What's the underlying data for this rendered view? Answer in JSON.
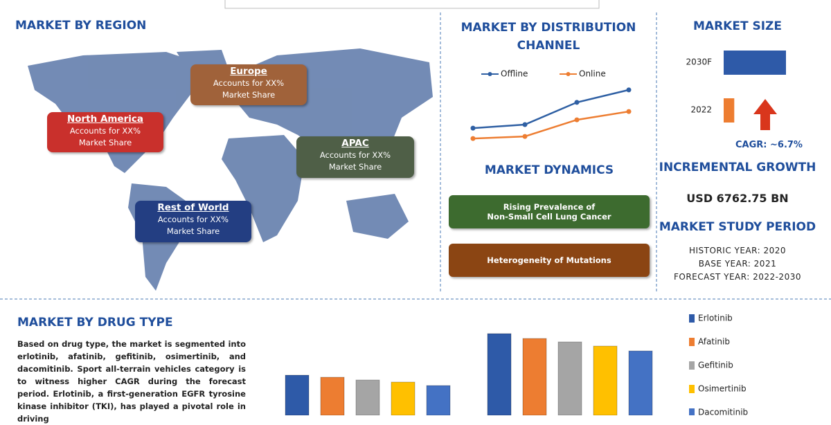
{
  "region": {
    "title": "MARKET BY REGION",
    "labels": [
      {
        "name": "North America",
        "lines": [
          "Accounts for XX%",
          "Market Share"
        ]
      },
      {
        "name": "Europe",
        "lines": [
          "Accounts for XX%",
          "Market Share"
        ]
      },
      {
        "name": "APAC",
        "lines": [
          "Accounts for XX%",
          "Market Share"
        ]
      },
      {
        "name": "Rest of World",
        "lines": [
          "Accounts for XX%",
          "Market Share"
        ]
      }
    ]
  },
  "dynamics": {
    "title": "MARKET DYNAMICS",
    "items": [
      {
        "lines": [
          "Rising Prevalence of",
          "Non-Small Cell Lung Cancer"
        ]
      },
      {
        "lines": [
          "Heterogeneity of Mutations"
        ]
      }
    ]
  },
  "market_size": {
    "title": "MARKET SIZE",
    "cagr": "CAGR:  ~6.7%"
  },
  "incremental_growth": {
    "title": "INCREMENTAL GROWTH",
    "value": "USD 6762.75 BN"
  },
  "study_period": {
    "title": "MARKET STUDY PERIOD",
    "lines": [
      "HISTORIC YEAR: 2020",
      "BASE YEAR: 2021",
      "FORECAST YEAR: 2022-2030"
    ]
  },
  "drug_type": {
    "title": "MARKET BY DRUG TYPE",
    "text": "Based on drug type, the market is segmented into erlotinib, afatinib, gefitinib, osimertinib, and dacomitinib. Sport all-terrain vehicles category is to witness higher CAGR during the forecast period. Erlotinib, a first-generation EGFR tyrosine kinase inhibitor (TKI), has played a pivotal role in driving"
  },
  "chart_data": [
    {
      "type": "line",
      "title": "MARKET BY DISTRIBUTION CHANNEL",
      "categories": [
        null,
        null,
        null,
        null
      ],
      "ylim": [
        0,
        3
      ],
      "series": [
        {
          "name": "Offline",
          "color": "#2e5fa3",
          "values": [
            0.83,
            1.0,
            2.07,
            2.67
          ]
        },
        {
          "name": "Online",
          "color": "#ed7d31",
          "values": [
            0.33,
            0.43,
            1.23,
            1.63
          ]
        }
      ]
    },
    {
      "type": "hbar",
      "categories": [
        "2030F",
        "2022"
      ],
      "values": [
        100,
        17
      ],
      "colors": [
        "#2e5aa8",
        "#ed7d31"
      ],
      "xlim": [
        0,
        100
      ]
    },
    {
      "type": "bar",
      "categories": [
        null,
        null
      ],
      "ylim": [
        0,
        120
      ],
      "series": [
        {
          "name": "Erlotinib",
          "color": "#2e5aa8",
          "values": [
            58,
            118
          ]
        },
        {
          "name": "Afatinib",
          "color": "#ed7d31",
          "values": [
            55,
            111
          ]
        },
        {
          "name": "Gefitinib",
          "color": "#a5a5a5",
          "values": [
            51,
            106
          ]
        },
        {
          "name": "Osimertinib",
          "color": "#ffc000",
          "values": [
            48,
            100
          ]
        },
        {
          "name": "Dacomitinib",
          "color": "#4472c4",
          "values": [
            43,
            93
          ]
        }
      ]
    }
  ]
}
